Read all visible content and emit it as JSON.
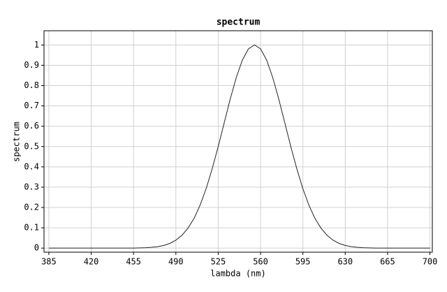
{
  "chart_data": {
    "type": "line",
    "title": "spectrum",
    "x_label": "lambda (nm)",
    "y_label": "spectrum",
    "x": [
      385,
      390,
      395,
      400,
      405,
      410,
      415,
      420,
      425,
      430,
      435,
      440,
      445,
      450,
      455,
      460,
      465,
      470,
      475,
      480,
      485,
      490,
      495,
      500,
      505,
      510,
      515,
      520,
      525,
      530,
      535,
      540,
      545,
      550,
      555,
      560,
      565,
      570,
      575,
      580,
      585,
      590,
      595,
      600,
      605,
      610,
      615,
      620,
      625,
      630,
      635,
      640,
      645,
      650,
      655,
      660,
      665,
      670,
      675,
      680,
      685,
      690,
      695,
      700
    ],
    "series": [
      {
        "name": "spectrum",
        "color": "#222222",
        "values": [
          0,
          0,
          0,
          0,
          0,
          0,
          0,
          0,
          0,
          0,
          0,
          0,
          0,
          0,
          0,
          0.001,
          0.002,
          0.004,
          0.007,
          0.013,
          0.023,
          0.039,
          0.063,
          0.098,
          0.146,
          0.211,
          0.292,
          0.39,
          0.5,
          0.618,
          0.735,
          0.841,
          0.926,
          0.981,
          1,
          0.981,
          0.926,
          0.841,
          0.735,
          0.618,
          0.5,
          0.39,
          0.292,
          0.211,
          0.146,
          0.098,
          0.063,
          0.039,
          0.023,
          0.013,
          0.007,
          0.004,
          0.002,
          0.001,
          0,
          0,
          0,
          0,
          0,
          0,
          0,
          0,
          0,
          0
        ]
      }
    ],
    "xlim": [
      381,
      702
    ],
    "ylim": [
      -0.02,
      1.07
    ],
    "xticks": [
      385,
      420,
      455,
      490,
      525,
      560,
      595,
      630,
      665,
      700
    ],
    "yticks": [
      0,
      0.1,
      0.2,
      0.3,
      0.4,
      0.5,
      0.6,
      0.7,
      0.8,
      0.9,
      1
    ],
    "grid": true
  }
}
